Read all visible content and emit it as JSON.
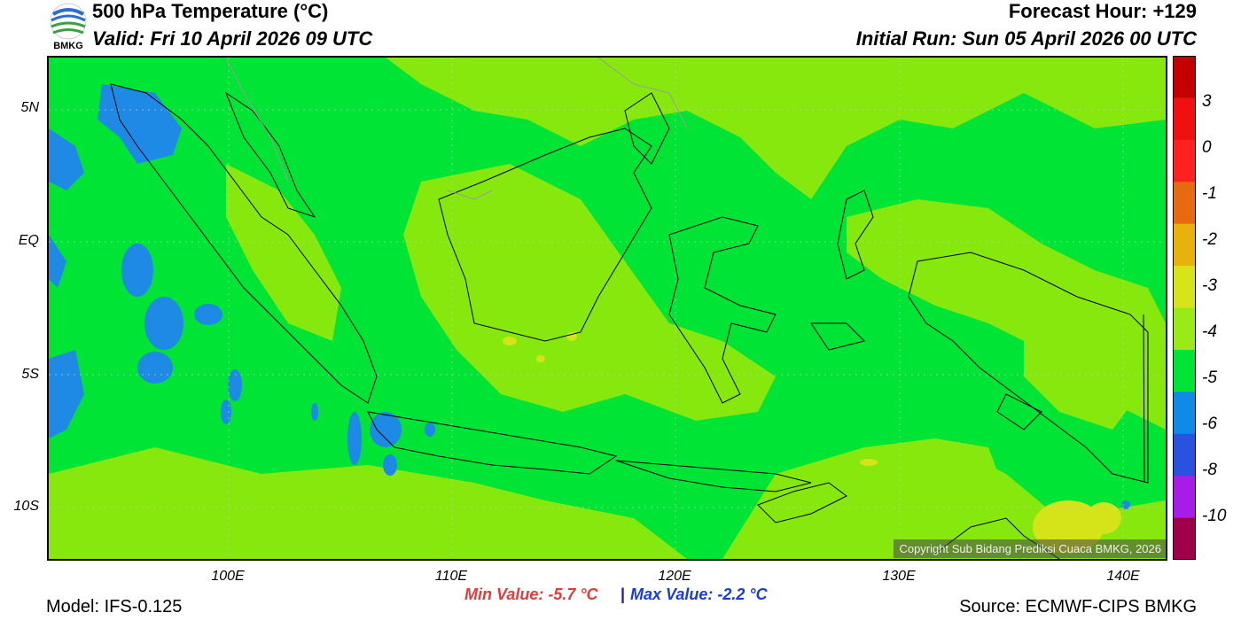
{
  "header": {
    "title": "500 hPa Temperature (°C)",
    "valid": "Valid: Fri 10 April 2026 09 UTC",
    "forecast_hour": "Forecast Hour: +129",
    "initial_run": "Initial Run: Sun 05 April 2026 00 UTC"
  },
  "logo": {
    "text": "BMKG",
    "icon": "bmkg-logo"
  },
  "axes": {
    "lat_labels": [
      "5N",
      "EQ",
      "5S",
      "10S"
    ],
    "lon_labels": [
      "100E",
      "110E",
      "120E",
      "130E",
      "140E"
    ]
  },
  "colorbar": {
    "labels": [
      "3",
      "0",
      "-1",
      "-2",
      "-3",
      "-4",
      "-5",
      "-6",
      "-8",
      "-10"
    ],
    "colors": [
      "#c40000",
      "#f01010",
      "#ff2020",
      "#e86a10",
      "#e8b20c",
      "#d8e41a",
      "#9aea18",
      "#00e436",
      "#0f8ae8",
      "#2a52e0",
      "#a81ce8",
      "#a0004a"
    ]
  },
  "map": {
    "field_colors": {
      "minus4": "#00e436",
      "minus3": "#86e80c",
      "minus2": "#d4e419",
      "minus5": "#1e8ae6"
    },
    "copyright": "Copyright Sub Bidang Prediksi Cuaca BMKG, 2026"
  },
  "stats": {
    "min_value": "Min Value: -5.7 °C",
    "separator": "|",
    "max_value": "Max Value: -2.2 °C"
  },
  "footer": {
    "model": "Model: IFS-0.125",
    "source": "Source: ECMWF-CIPS BMKG"
  }
}
